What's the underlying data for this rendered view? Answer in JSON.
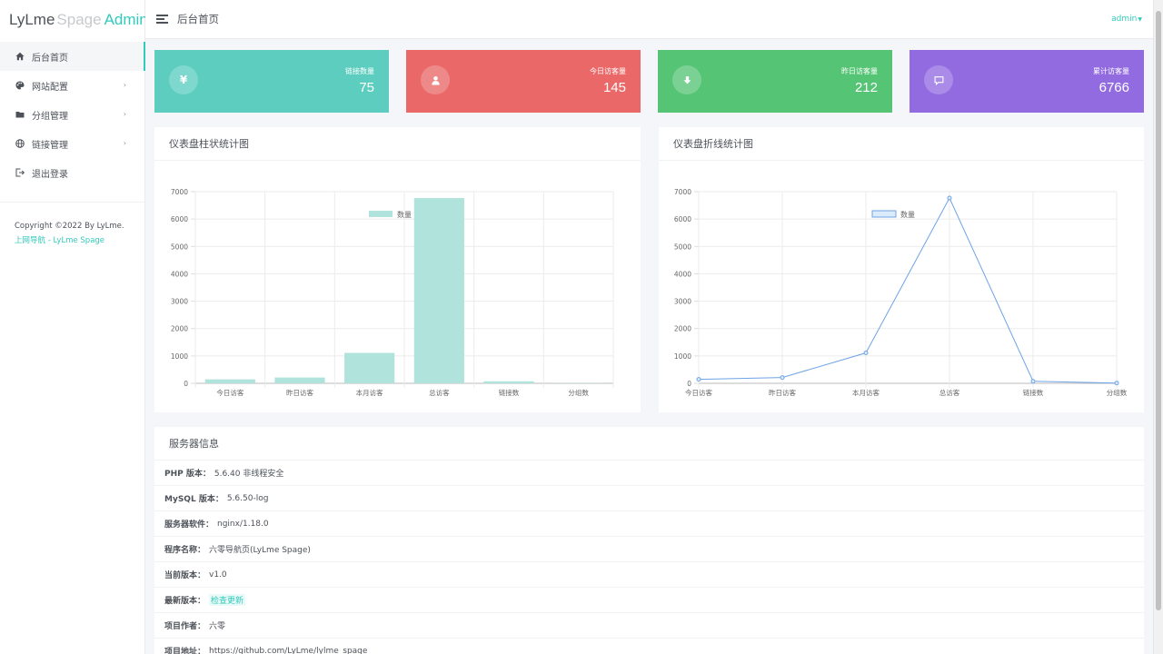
{
  "logo": {
    "part1": "LyLme",
    "part2": "Spage",
    "part3": "Admin"
  },
  "sidebar": {
    "items": [
      {
        "label": "后台首页",
        "icon": "home-icon",
        "active": true,
        "has_sub": false
      },
      {
        "label": "网站配置",
        "icon": "palette-icon",
        "active": false,
        "has_sub": true
      },
      {
        "label": "分组管理",
        "icon": "folder-icon",
        "active": false,
        "has_sub": true
      },
      {
        "label": "链接管理",
        "icon": "globe-icon",
        "active": false,
        "has_sub": true
      },
      {
        "label": "退出登录",
        "icon": "logout-icon",
        "active": false,
        "has_sub": false
      }
    ],
    "copyright": "Copyright ©2022 By LyLme.",
    "copyright_link": "上网导航 - LyLme Spage"
  },
  "header": {
    "title": "后台首页",
    "user": "admin"
  },
  "stats": [
    {
      "label": "链接数量",
      "value": "75",
      "color": "#5ccdbf",
      "icon": "yen-icon"
    },
    {
      "label": "今日访客量",
      "value": "145",
      "color": "#ea6868",
      "icon": "user-icon"
    },
    {
      "label": "昨日访客量",
      "value": "212",
      "color": "#55c575",
      "icon": "download-icon"
    },
    {
      "label": "累计访客量",
      "value": "6766",
      "color": "#926be0",
      "icon": "comment-icon"
    }
  ],
  "bar_panel": {
    "title": "仪表盘柱状统计图"
  },
  "line_panel": {
    "title": "仪表盘折线统计图"
  },
  "chart_data": [
    {
      "type": "bar",
      "categories": [
        "今日访客",
        "昨日访客",
        "本月访客",
        "总访客",
        "链接数",
        "分组数"
      ],
      "series": [
        {
          "name": "数量",
          "values": [
            145,
            212,
            1110,
            6766,
            75,
            8
          ]
        }
      ],
      "ylim": [
        0,
        7000
      ],
      "yticks": [
        0,
        1000,
        2000,
        3000,
        4000,
        5000,
        6000,
        7000
      ],
      "legend": "top-center",
      "grid": true,
      "color": "#b0e3db"
    },
    {
      "type": "line",
      "categories": [
        "今日访客",
        "昨日访客",
        "本月访客",
        "总访客",
        "链接数",
        "分组数"
      ],
      "series": [
        {
          "name": "数量",
          "values": [
            145,
            212,
            1110,
            6766,
            75,
            8
          ]
        }
      ],
      "ylim": [
        0,
        7000
      ],
      "yticks": [
        0,
        1000,
        2000,
        3000,
        4000,
        5000,
        6000,
        7000
      ],
      "legend": "top-center",
      "grid": true,
      "color": "#6ea3e6"
    }
  ],
  "server": {
    "title": "服务器信息",
    "rows": [
      {
        "key": "PHP 版本：",
        "value": "5.6.40 非线程安全",
        "link": false
      },
      {
        "key": "MySQL 版本：",
        "value": "5.6.50-log",
        "link": false
      },
      {
        "key": "服务器软件：",
        "value": "nginx/1.18.0",
        "link": false
      },
      {
        "key": "程序名称：",
        "value": "六零导航页(LyLme Spage)",
        "link": false
      },
      {
        "key": "当前版本：",
        "value": "v1.0",
        "link": false
      },
      {
        "key": "最新版本：",
        "value": "检查更新",
        "link": true
      },
      {
        "key": "项目作者：",
        "value": "六零",
        "link": false
      },
      {
        "key": "项目地址：",
        "value": "https://github.com/LyLme/lylme_spage",
        "link": false
      }
    ]
  }
}
